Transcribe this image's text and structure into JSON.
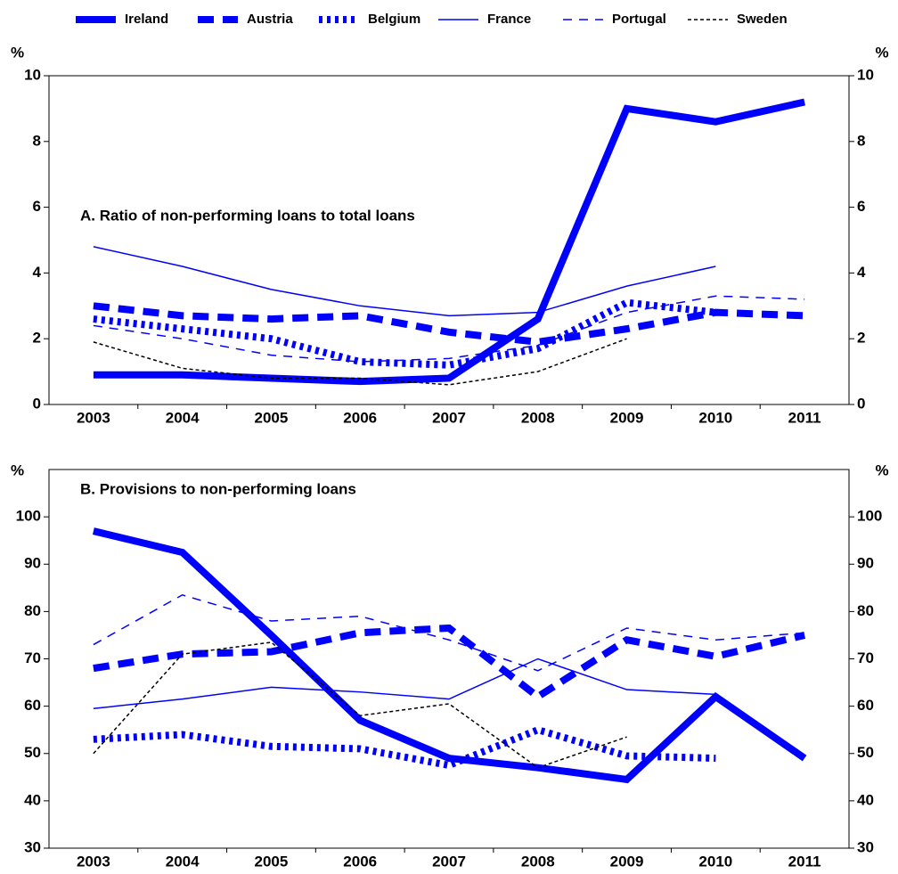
{
  "chart_data": [
    {
      "type": "line",
      "title": "A. Ratio of non-performing loans to total loans",
      "unit": "%",
      "categories": [
        "2003",
        "2004",
        "2005",
        "2006",
        "2007",
        "2008",
        "2009",
        "2010",
        "2011"
      ],
      "ylim": [
        0,
        10
      ],
      "yticks": [
        0,
        2,
        4,
        6,
        8,
        10
      ],
      "series": [
        {
          "name": "Ireland",
          "color": "#0000ff",
          "weight": "thick",
          "style": "solid",
          "values": [
            0.9,
            0.9,
            0.8,
            0.7,
            0.8,
            2.6,
            9.0,
            8.6,
            9.2
          ]
        },
        {
          "name": "Austria",
          "color": "#0000ff",
          "weight": "thick",
          "style": "dashed",
          "values": [
            3.0,
            2.7,
            2.6,
            2.7,
            2.2,
            1.9,
            2.3,
            2.8,
            2.7
          ]
        },
        {
          "name": "Belgium",
          "color": "#0000ff",
          "weight": "thick",
          "style": "dotted",
          "values": [
            2.6,
            2.3,
            2.0,
            1.3,
            1.2,
            1.7,
            3.1,
            2.8,
            null
          ]
        },
        {
          "name": "France",
          "color": "#0000ff",
          "weight": "thin",
          "style": "solid",
          "values": [
            4.8,
            4.2,
            3.5,
            3.0,
            2.7,
            2.8,
            3.6,
            4.2,
            null
          ]
        },
        {
          "name": "Portugal",
          "color": "#0000ff",
          "weight": "thin",
          "style": "dashed",
          "values": [
            2.4,
            2.0,
            1.5,
            1.3,
            1.4,
            1.8,
            2.8,
            3.3,
            3.2
          ]
        },
        {
          "name": "Sweden",
          "color": "#000000",
          "weight": "thin",
          "style": "dotted",
          "values": [
            1.9,
            1.1,
            0.8,
            0.8,
            0.6,
            1.0,
            2.0,
            null,
            null
          ]
        }
      ]
    },
    {
      "type": "line",
      "title": "B. Provisions to non-performing loans",
      "unit": "%",
      "categories": [
        "2003",
        "2004",
        "2005",
        "2006",
        "2007",
        "2008",
        "2009",
        "2010",
        "2011"
      ],
      "ylim": [
        30,
        110
      ],
      "yticks": [
        30,
        40,
        50,
        60,
        70,
        80,
        90,
        100
      ],
      "series": [
        {
          "name": "Ireland",
          "color": "#0000ff",
          "weight": "thick",
          "style": "solid",
          "values": [
            97,
            92.5,
            75,
            57,
            49,
            47,
            44.5,
            62,
            49
          ]
        },
        {
          "name": "Austria",
          "color": "#0000ff",
          "weight": "thick",
          "style": "dashed",
          "values": [
            68,
            71,
            71.5,
            75.5,
            76.5,
            62,
            74,
            70.5,
            75
          ]
        },
        {
          "name": "Belgium",
          "color": "#0000ff",
          "weight": "thick",
          "style": "dotted",
          "values": [
            53,
            54,
            51.5,
            51,
            47.5,
            55,
            49.5,
            49,
            null
          ]
        },
        {
          "name": "France",
          "color": "#0000ff",
          "weight": "thin",
          "style": "solid",
          "values": [
            59.5,
            61.5,
            64,
            63,
            61.5,
            70,
            63.5,
            62.5,
            null
          ]
        },
        {
          "name": "Portugal",
          "color": "#0000ff",
          "weight": "thin",
          "style": "dashed",
          "values": [
            73,
            83.5,
            78,
            79,
            74,
            67.5,
            76.5,
            74,
            75.5
          ]
        },
        {
          "name": "Sweden",
          "color": "#000000",
          "weight": "thin",
          "style": "dotted",
          "values": [
            50,
            71,
            73.5,
            58,
            60.5,
            47,
            53.5,
            null,
            null
          ]
        }
      ]
    }
  ]
}
